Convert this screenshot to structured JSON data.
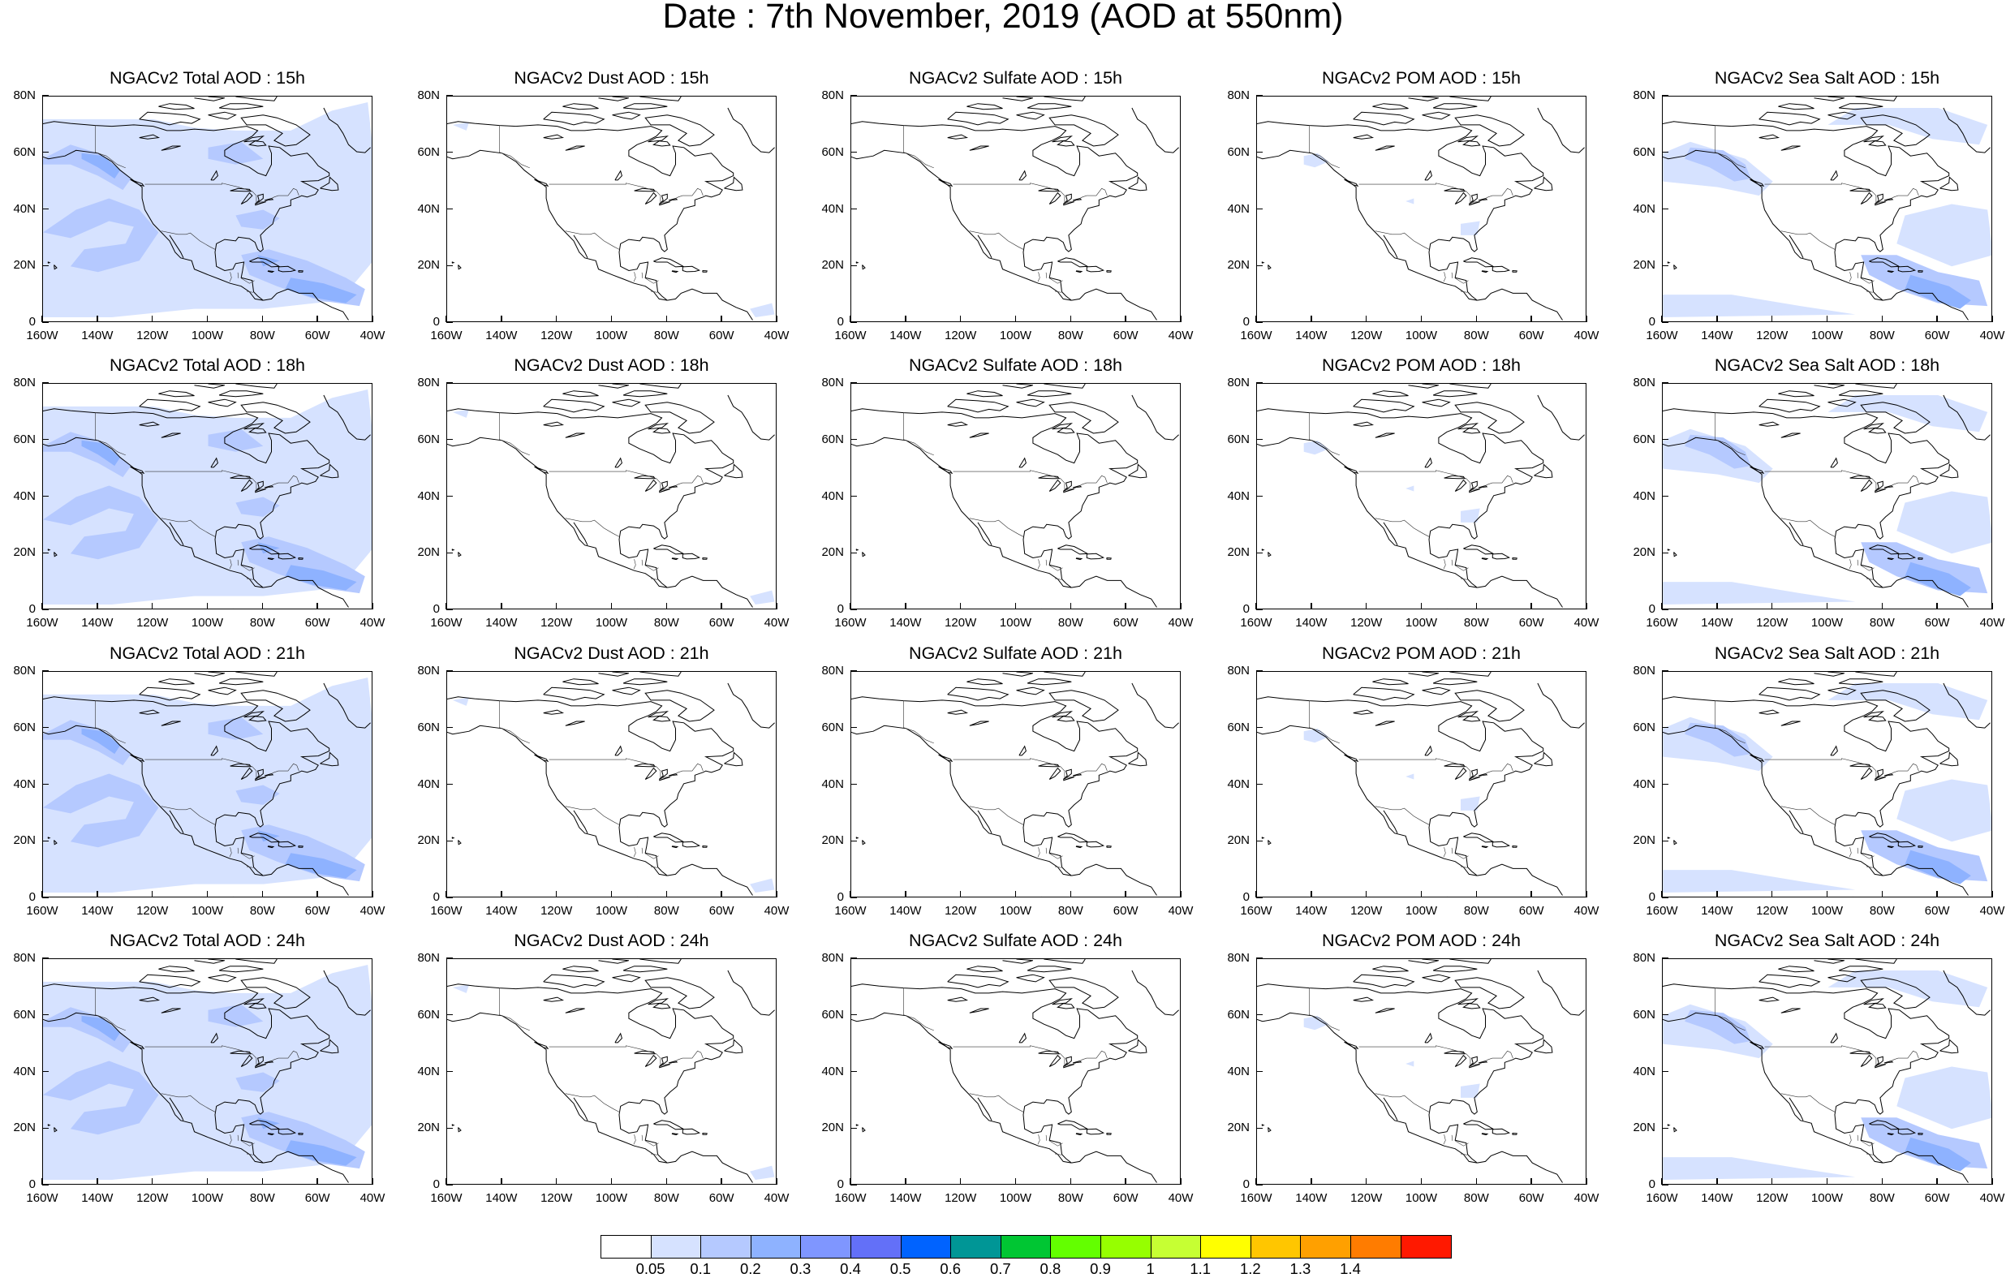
{
  "title": "Date : 7th November, 2019 (AOD at 550nm)",
  "panels": [
    {
      "title": "NGACv2 Total AOD : 15h",
      "species": "total"
    },
    {
      "title": "NGACv2 Dust AOD : 15h",
      "species": "dust"
    },
    {
      "title": "NGACv2 Sulfate AOD : 15h",
      "species": "sulfate"
    },
    {
      "title": "NGACv2 POM AOD : 15h",
      "species": "pom"
    },
    {
      "title": "NGACv2 Sea Salt AOD : 15h",
      "species": "seasalt"
    },
    {
      "title": "NGACv2 Total AOD : 18h",
      "species": "total"
    },
    {
      "title": "NGACv2 Dust AOD : 18h",
      "species": "dust"
    },
    {
      "title": "NGACv2 Sulfate AOD : 18h",
      "species": "sulfate"
    },
    {
      "title": "NGACv2 POM AOD : 18h",
      "species": "pom"
    },
    {
      "title": "NGACv2 Sea Salt AOD : 18h",
      "species": "seasalt"
    },
    {
      "title": "NGACv2 Total AOD : 21h",
      "species": "total"
    },
    {
      "title": "NGACv2 Dust AOD : 21h",
      "species": "dust"
    },
    {
      "title": "NGACv2 Sulfate AOD : 21h",
      "species": "sulfate"
    },
    {
      "title": "NGACv2 POM AOD : 21h",
      "species": "pom"
    },
    {
      "title": "NGACv2 Sea Salt AOD : 21h",
      "species": "seasalt"
    },
    {
      "title": "NGACv2 Total AOD : 24h",
      "species": "total"
    },
    {
      "title": "NGACv2 Dust AOD : 24h",
      "species": "dust"
    },
    {
      "title": "NGACv2 Sulfate AOD : 24h",
      "species": "sulfate"
    },
    {
      "title": "NGACv2 POM AOD : 24h",
      "species": "pom"
    },
    {
      "title": "NGACv2 Sea Salt  AOD : 24h",
      "species": "seasalt"
    }
  ],
  "y_ticks": [
    "80N",
    "60N",
    "40N",
    "20N",
    "0"
  ],
  "x_ticks": [
    "160W",
    "140W",
    "120W",
    "100W",
    "80W",
    "60W",
    "40W"
  ],
  "colorbar": {
    "colors": [
      "#ffffff",
      "#d6e2ff",
      "#b5c9ff",
      "#8eb2ff",
      "#7f96ff",
      "#6370f8",
      "#0063ff",
      "#009696",
      "#00c633",
      "#63ff00",
      "#96ff00",
      "#c6ff33",
      "#ffff00",
      "#ffc600",
      "#ffa000",
      "#ff7c00",
      "#ff1900"
    ],
    "labels": [
      "0.05",
      "0.1",
      "0.2",
      "0.3",
      "0.4",
      "0.5",
      "0.6",
      "0.7",
      "0.8",
      "0.9",
      "1",
      "1.1",
      "1.2",
      "1.3",
      "1.4"
    ]
  },
  "shading_colors": {
    "light": "#d6e2ff",
    "medium": "#b5c9ff",
    "strong": "#8eb2ff"
  }
}
